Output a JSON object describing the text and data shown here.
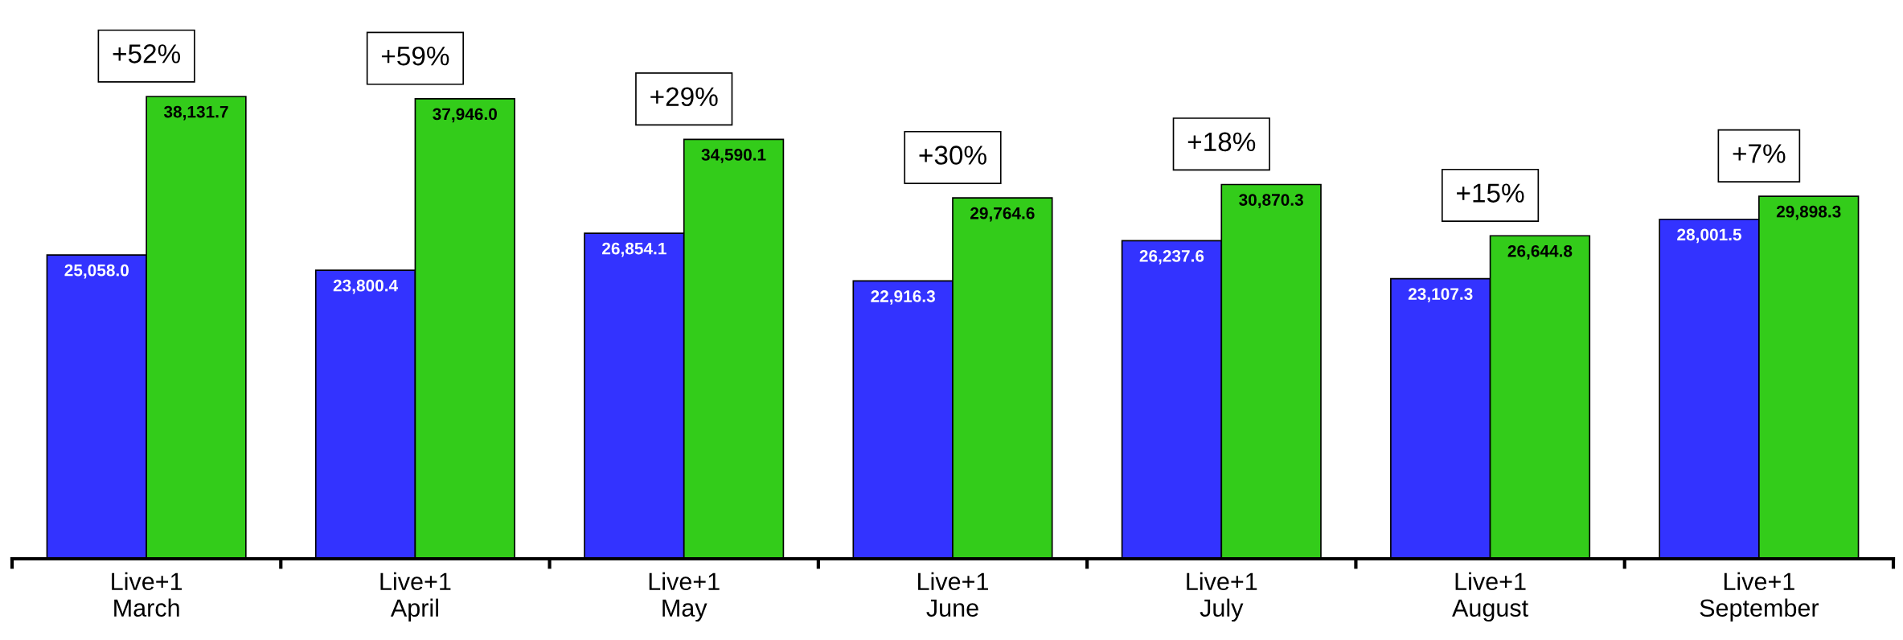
{
  "chart_data": {
    "type": "bar",
    "categories": [
      "Live+1\nMarch",
      "Live+1\nApril",
      "Live+1\nMay",
      "Live+1\nJune",
      "Live+1\nJuly",
      "Live+1\nAugust",
      "Live+1\nSeptember"
    ],
    "series": [
      {
        "color": "#3333ff",
        "values": [
          25058.0,
          23800.4,
          26854.1,
          22916.3,
          26237.6,
          23107.3,
          28001.5
        ],
        "value_labels": [
          "25,058.0",
          "23,800.4",
          "26,854.1",
          "22,916.3",
          "26,237.6",
          "23,107.3",
          "28,001.5"
        ]
      },
      {
        "color": "#33cc1a",
        "values": [
          38131.7,
          37946.0,
          34590.1,
          29764.6,
          30870.3,
          26644.8,
          29898.3
        ],
        "value_labels": [
          "38,131.7",
          "37,946.0",
          "34,590.1",
          "29,764.6",
          "30,870.3",
          "26,644.8",
          "29,898.3"
        ]
      }
    ],
    "annotations": [
      "+52%",
      "+59%",
      "+29%",
      "+30%",
      "+18%",
      "+15%",
      "+7%"
    ],
    "grid": false,
    "legend": false
  }
}
